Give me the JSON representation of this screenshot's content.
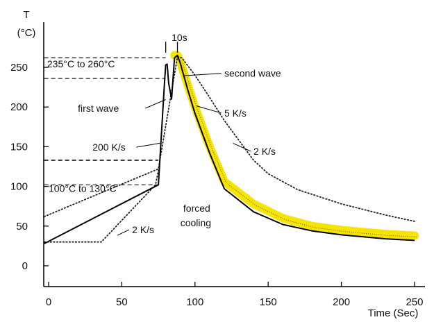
{
  "chart_data": {
    "type": "line",
    "title": "",
    "ylabel": "T",
    "ylabel_unit": "(°C)",
    "xlabel": "Time (Sec)",
    "xlim": [
      0,
      250
    ],
    "ylim": [
      0,
      290
    ],
    "xticks": [
      0,
      50,
      100,
      150,
      200,
      250
    ],
    "yticks": [
      0,
      50,
      100,
      150,
      200,
      250
    ],
    "grid": false,
    "legend": "none",
    "series": [
      {
        "style": "solid",
        "color": "#000000",
        "x": [
          -3,
          75,
          79,
          80,
          81,
          82,
          84,
          86,
          88,
          90,
          95,
          100,
          110,
          120,
          140,
          160,
          180,
          200,
          230,
          250
        ],
        "y": [
          28,
          102,
          225,
          253,
          254,
          230,
          210,
          262,
          265,
          255,
          222,
          192,
          142,
          97,
          68,
          52,
          44,
          39,
          34,
          32
        ]
      },
      {
        "style": "yellow-band",
        "color": "#F5E400",
        "x": [
          86,
          88,
          90,
          95,
          100,
          110,
          120,
          140,
          160,
          180,
          200,
          230,
          250
        ],
        "y": [
          265,
          265,
          257,
          228,
          200,
          150,
          106,
          78,
          60,
          50,
          45,
          40,
          38
        ]
      },
      {
        "style": "dotted-upper",
        "color": "#222222",
        "x": [
          -3,
          75,
          88,
          91,
          100,
          110,
          120,
          130,
          140,
          150,
          170,
          200,
          230,
          250
        ],
        "y": [
          62,
          122,
          263,
          262,
          240,
          212,
          183,
          158,
          133,
          116,
          96,
          78,
          64,
          56
        ]
      },
      {
        "style": "dotted-lower",
        "color": "#222222",
        "x": [
          -3,
          36,
          73,
          75
        ],
        "y": [
          30,
          30,
          102,
          120
        ]
      }
    ],
    "reference_lines": [
      {
        "y": 262,
        "x_from": -3,
        "x_to": 80
      },
      {
        "y": 236,
        "x_from": -3,
        "x_to": 79
      },
      {
        "y": 133,
        "x_from": -3,
        "x_to": 75
      },
      {
        "y": 102,
        "x_from": -3,
        "x_to": 75
      }
    ],
    "annotations": [
      {
        "text": "235°C to 260°C",
        "x": -1,
        "y": 250
      },
      {
        "text": "10s",
        "x": 84,
        "y": 283
      },
      {
        "text": "second wave",
        "x": 120,
        "y": 238
      },
      {
        "text": "first wave",
        "x": 20,
        "y": 194
      },
      {
        "text": "5 K/s",
        "x": 120,
        "y": 188
      },
      {
        "text": "200 K/s",
        "x": 30,
        "y": 145
      },
      {
        "text": "2 K/s",
        "x": 140,
        "y": 140
      },
      {
        "text": "100°C to 130°C",
        "x": 0,
        "y": 93
      },
      {
        "text": "forced",
        "x": 92,
        "y": 68
      },
      {
        "text": "cooling",
        "x": 90,
        "y": 50
      },
      {
        "text": "2 K/s",
        "x": 57,
        "y": 41
      }
    ]
  }
}
